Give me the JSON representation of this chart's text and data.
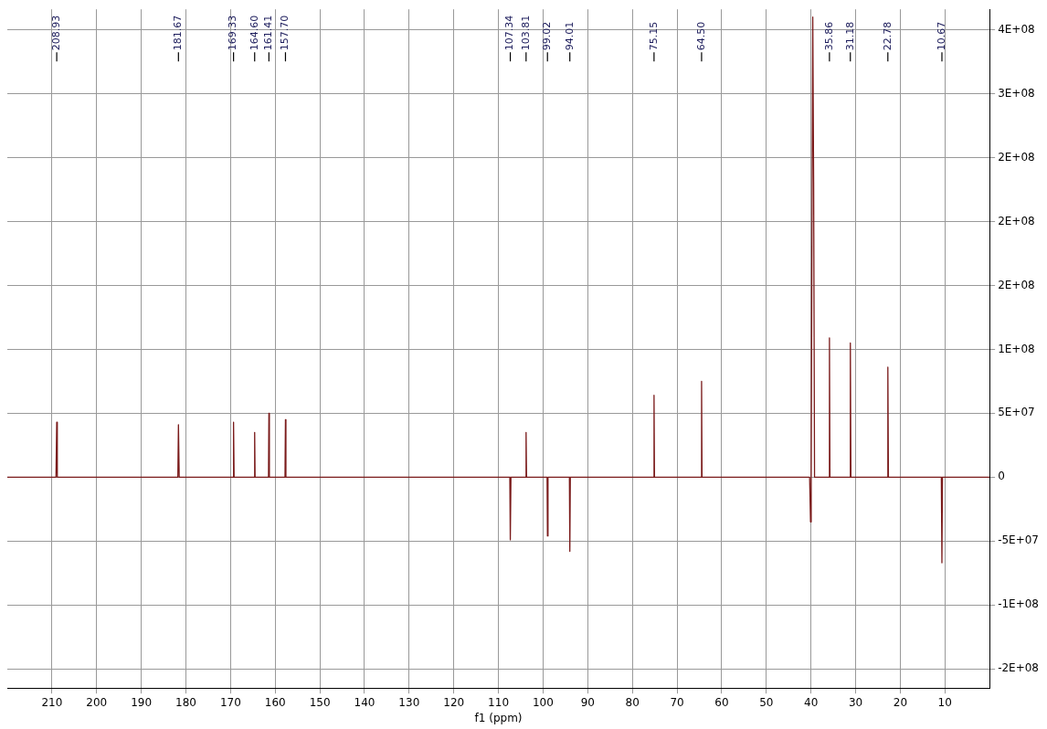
{
  "chart_data": {
    "type": "line",
    "xlabel": "f1 (ppm)",
    "xlim": [
      220,
      0
    ],
    "xticks": [
      210,
      200,
      190,
      180,
      170,
      160,
      150,
      140,
      130,
      120,
      110,
      100,
      90,
      80,
      70,
      60,
      50,
      40,
      30,
      20,
      10
    ],
    "ylim": [
      -165000000,
      366000000
    ],
    "yticks": [
      {
        "value": 350000000,
        "label": "4E+08"
      },
      {
        "value": 300000000,
        "label": "3E+08"
      },
      {
        "value": 250000000,
        "label": "2E+08"
      },
      {
        "value": 200000000,
        "label": "2E+08"
      },
      {
        "value": 150000000,
        "label": "2E+08"
      },
      {
        "value": 100000000,
        "label": "1E+08"
      },
      {
        "value": 50000000,
        "label": "5E+07"
      },
      {
        "value": 0,
        "label": "0"
      },
      {
        "value": -50000000,
        "label": "-5E+07"
      },
      {
        "value": -100000000,
        "label": "-1E+08"
      },
      {
        "value": -150000000,
        "label": "-2E+08"
      }
    ],
    "grid": true,
    "legend": false,
    "marker": "none",
    "line_style": "solid",
    "series": [
      {
        "color": "#7a1a1a",
        "x": [
          220,
          209.1,
          208.93,
          208.8,
          181.8,
          181.67,
          181.5,
          169.45,
          169.33,
          169.2,
          164.7,
          164.6,
          164.5,
          161.5,
          161.41,
          161.3,
          157.8,
          157.7,
          157.6,
          107.45,
          107.34,
          107.2,
          103.9,
          103.81,
          103.7,
          99.1,
          99.02,
          98.9,
          94.1,
          94.01,
          93.9,
          75.25,
          75.15,
          75.05,
          64.6,
          64.5,
          64.4,
          40.3,
          40.1,
          39.95,
          39.8,
          39.6,
          39.4,
          39.2,
          35.95,
          35.86,
          35.75,
          31.3,
          31.18,
          31.05,
          22.9,
          22.78,
          22.65,
          10.8,
          10.67,
          10.55,
          0
        ],
        "values": [
          0,
          0,
          43000000,
          0,
          0,
          41000000,
          0,
          0,
          43000000,
          0,
          0,
          35000000,
          0,
          0,
          50000000,
          0,
          0,
          45000000,
          0,
          0,
          -49000000,
          0,
          0,
          35000000,
          0,
          0,
          -46000000,
          0,
          0,
          -58000000,
          0,
          0,
          64000000,
          0,
          0,
          75000000,
          0,
          0,
          -35000000,
          0,
          170000000,
          360000000,
          230000000,
          0,
          0,
          109000000,
          0,
          0,
          105000000,
          0,
          0,
          86000000,
          0,
          0,
          -67000000,
          0,
          0
        ]
      }
    ],
    "annotations": [
      {
        "text": "208.93",
        "x": 208.93
      },
      {
        "text": "181.67",
        "x": 181.67
      },
      {
        "text": "169.33",
        "x": 169.33
      },
      {
        "text": "164.60",
        "x": 164.6
      },
      {
        "text": "161.41",
        "x": 161.41
      },
      {
        "text": "157.70",
        "x": 157.7
      },
      {
        "text": "107.34",
        "x": 107.34
      },
      {
        "text": "103.81",
        "x": 103.81
      },
      {
        "text": "99.02",
        "x": 99.02
      },
      {
        "text": "94.01",
        "x": 94.01
      },
      {
        "text": "75.15",
        "x": 75.15
      },
      {
        "text": "64.50",
        "x": 64.5
      },
      {
        "text": "35.86",
        "x": 35.86
      },
      {
        "text": "31.18",
        "x": 31.18
      },
      {
        "text": "22.78",
        "x": 22.78
      },
      {
        "text": "10.67",
        "x": 10.67
      }
    ]
  }
}
